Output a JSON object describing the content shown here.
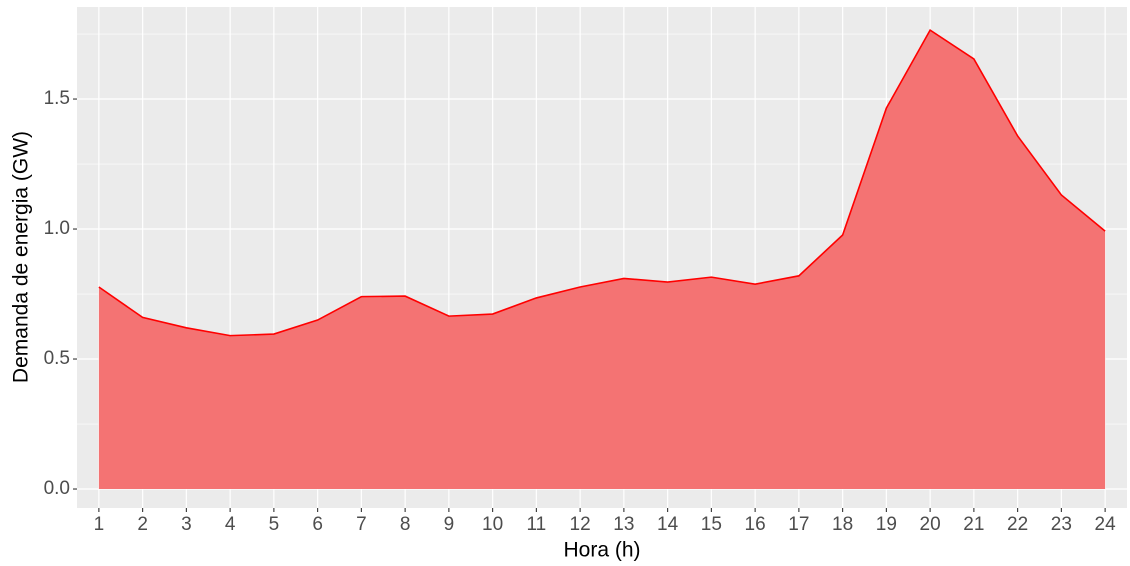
{
  "chart_data": {
    "type": "area",
    "xlabel": "Hora (h)",
    "ylabel": "Demanda de energia (GW)",
    "x": [
      1,
      2,
      3,
      4,
      5,
      6,
      7,
      8,
      9,
      10,
      11,
      12,
      13,
      14,
      15,
      16,
      17,
      18,
      19,
      20,
      21,
      22,
      23,
      24
    ],
    "series": [
      {
        "color": "#ff0000",
        "fill": "#f47373",
        "values": [
          0.777,
          0.66,
          0.62,
          0.59,
          0.596,
          0.65,
          0.74,
          0.742,
          0.665,
          0.673,
          0.735,
          0.777,
          0.81,
          0.796,
          0.815,
          0.788,
          0.82,
          0.977,
          1.465,
          1.765,
          1.654,
          1.358,
          1.131,
          0.992
        ]
      }
    ],
    "xlim": [
      0.5,
      24.5
    ],
    "ylim": [
      -0.073,
      1.854
    ],
    "xticks": [
      1,
      2,
      3,
      4,
      5,
      6,
      7,
      8,
      9,
      10,
      11,
      12,
      13,
      14,
      15,
      16,
      17,
      18,
      19,
      20,
      21,
      22,
      23,
      24
    ],
    "yticks": [
      {
        "value": 0,
        "label": "0.0"
      },
      0.5,
      {
        "value": 1,
        "label": "1.0"
      },
      1.5
    ],
    "yminor_ticks": [
      0.25,
      0.75,
      1.25,
      1.75
    ],
    "grid": true
  }
}
